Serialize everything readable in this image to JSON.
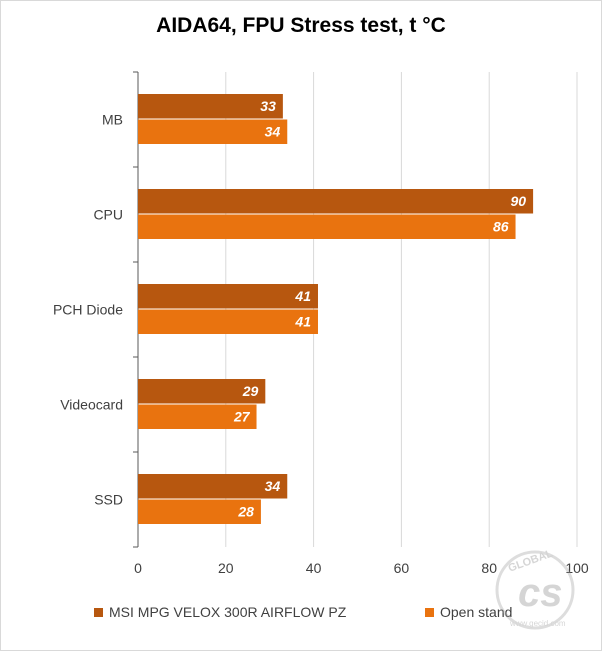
{
  "colors": {
    "series_1": "#B7570F",
    "series_2": "#E9730F",
    "grid": "#d9d9d9",
    "axis": "#595959",
    "text": "#404040"
  },
  "chart_data": {
    "type": "bar",
    "orientation": "horizontal",
    "title": "AIDA64, FPU Stress test, t °C",
    "categories": [
      "MB",
      "CPU",
      "PCH Diode",
      "Videocard",
      "SSD"
    ],
    "series": [
      {
        "name": "MSI MPG VELOX 300R AIRFLOW PZ",
        "values": [
          33,
          90,
          41,
          29,
          34
        ]
      },
      {
        "name": "Open stand",
        "values": [
          34,
          86,
          41,
          27,
          28
        ]
      }
    ],
    "xlim": [
      0,
      100
    ],
    "xticks": [
      0,
      20,
      40,
      60,
      80,
      100
    ],
    "grid": true,
    "legend_position": "bottom",
    "data_labels": true
  },
  "watermark": {
    "text": "GLOBAL",
    "site": "www.gecid.com"
  }
}
